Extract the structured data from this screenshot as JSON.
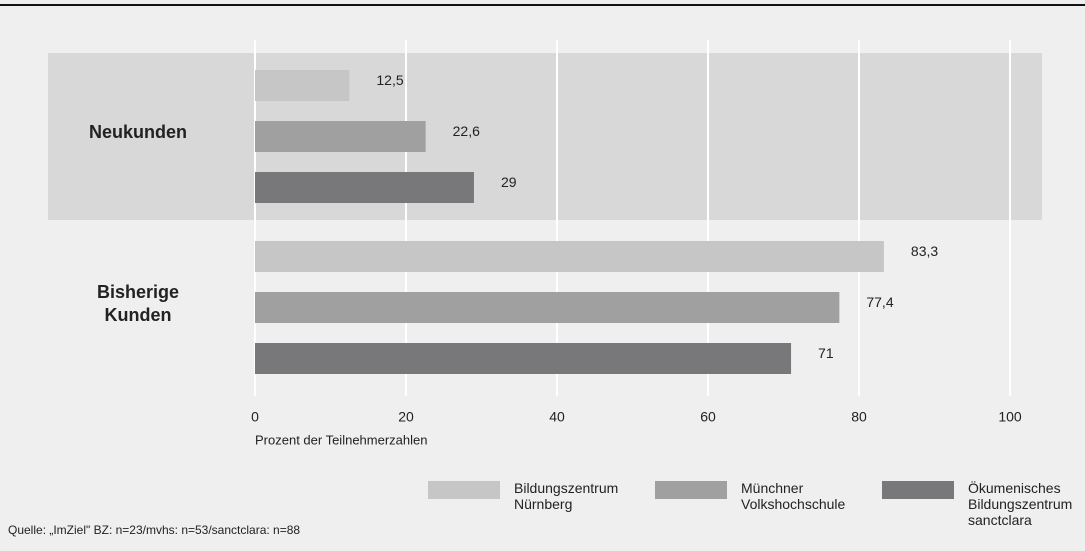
{
  "chart_data": {
    "type": "bar",
    "orientation": "horizontal",
    "categories": [
      "Neukunden",
      "Bisherige Kunden"
    ],
    "series": [
      {
        "name": "Bildungszentrum Nürnberg",
        "color": "#c6c6c6",
        "values": [
          12.5,
          83.3
        ],
        "value_labels": [
          "12,5",
          "83,3"
        ]
      },
      {
        "name": "Münchner Volkshochschule",
        "color": "#a0a0a0",
        "values": [
          22.6,
          77.4
        ],
        "value_labels": [
          "22,6",
          "77,4"
        ]
      },
      {
        "name": "Ökumenisches Bildungszentrum sanctclara",
        "color": "#78787a",
        "values": [
          29,
          71
        ],
        "value_labels": [
          "29",
          "71"
        ]
      }
    ],
    "xlim": [
      0,
      100
    ],
    "xticks": [
      0,
      20,
      40,
      60,
      80,
      100
    ],
    "grid": true,
    "x_label": "Prozent der Teilnehmerzahlen",
    "source": "Quelle: „ImZiel\"   BZ: n=23/mvhs: n=53/sanctclara: n=88",
    "legend": "bottom-right"
  }
}
